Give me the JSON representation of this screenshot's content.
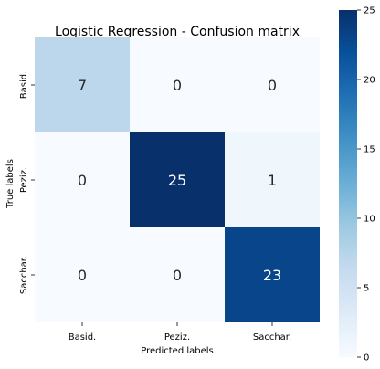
{
  "chart_data": {
    "type": "heatmap",
    "title": "Logistic Regression - Confusion matrix",
    "xlabel": "Predicted labels",
    "ylabel": "True labels",
    "x_categories": [
      "Basid.",
      "Peziz.",
      "Sacchar."
    ],
    "y_categories": [
      "Basid.",
      "Peziz.",
      "Sacchar."
    ],
    "values": [
      [
        7,
        0,
        0
      ],
      [
        0,
        25,
        1
      ],
      [
        0,
        0,
        23
      ]
    ],
    "colormap": "Blues",
    "color_range": [
      0,
      25
    ],
    "colorbar_ticks": [
      0,
      5,
      10,
      15,
      20,
      25
    ],
    "grid": false
  }
}
